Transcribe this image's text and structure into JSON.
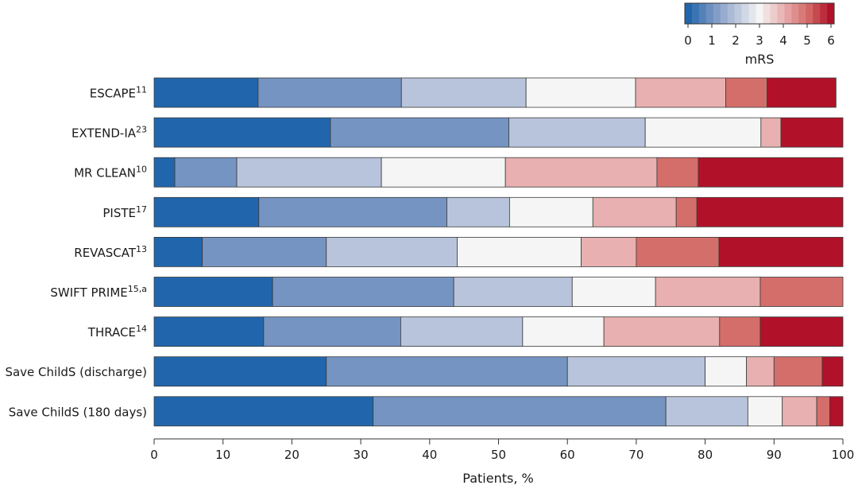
{
  "chart_data": {
    "type": "bar",
    "orientation": "horizontal",
    "stacked": true,
    "title": "",
    "xlabel": "Patients, %",
    "ylabel": "",
    "xlim": [
      0,
      100
    ],
    "xticks": [
      "0",
      "10",
      "20",
      "30",
      "40",
      "50",
      "60",
      "70",
      "80",
      "90",
      "100"
    ],
    "grid": false,
    "legend": {
      "title": "mRS",
      "placement": "top-right",
      "type": "colorbar",
      "ticks": [
        "0",
        "1",
        "2",
        "3",
        "4",
        "5",
        "6"
      ]
    },
    "categories": [
      {
        "name": "ESCAPE",
        "sup": "11"
      },
      {
        "name": "EXTEND-IA",
        "sup": "23"
      },
      {
        "name": "MR CLEAN",
        "sup": "10"
      },
      {
        "name": "PISTE",
        "sup": "17"
      },
      {
        "name": "REVASCAT",
        "sup": "13"
      },
      {
        "name": "SWIFT PRIME",
        "sup": "15,a"
      },
      {
        "name": "THRACE",
        "sup": "14"
      },
      {
        "name": "Save ChildS (discharge)",
        "sup": ""
      },
      {
        "name": "Save ChildS (180 days)",
        "sup": ""
      }
    ],
    "series": [
      {
        "name": "0",
        "color": "#2166ac",
        "values": [
          15.1,
          25.6,
          3.0,
          15.2,
          7.0,
          17.2,
          15.9,
          25.0,
          31.8
        ]
      },
      {
        "name": "1",
        "color": "#7594c2",
        "values": [
          20.8,
          25.9,
          9.0,
          27.3,
          18.0,
          26.3,
          19.9,
          35.0,
          42.5
        ]
      },
      {
        "name": "2",
        "color": "#b8c4db",
        "values": [
          18.1,
          19.8,
          21.0,
          9.1,
          19.0,
          17.2,
          17.7,
          20.0,
          11.9
        ]
      },
      {
        "name": "3",
        "color": "#f5f5f5",
        "values": [
          15.9,
          16.8,
          18.0,
          12.1,
          18.0,
          12.1,
          11.8,
          6.0,
          5.0
        ]
      },
      {
        "name": "4",
        "color": "#e8b0b0",
        "values": [
          13.1,
          2.9,
          22.0,
          12.1,
          8.0,
          15.2,
          16.8,
          4.0,
          5.0
        ]
      },
      {
        "name": "5",
        "color": "#d46e6a",
        "values": [
          6.0,
          0.0,
          6.0,
          3.0,
          12.0,
          12.0,
          5.9,
          7.0,
          1.9
        ]
      },
      {
        "name": "6",
        "color": "#b11229",
        "values": [
          10.0,
          9.0,
          21.0,
          21.2,
          18.0,
          0.0,
          12.0,
          3.0,
          1.9
        ]
      }
    ]
  }
}
